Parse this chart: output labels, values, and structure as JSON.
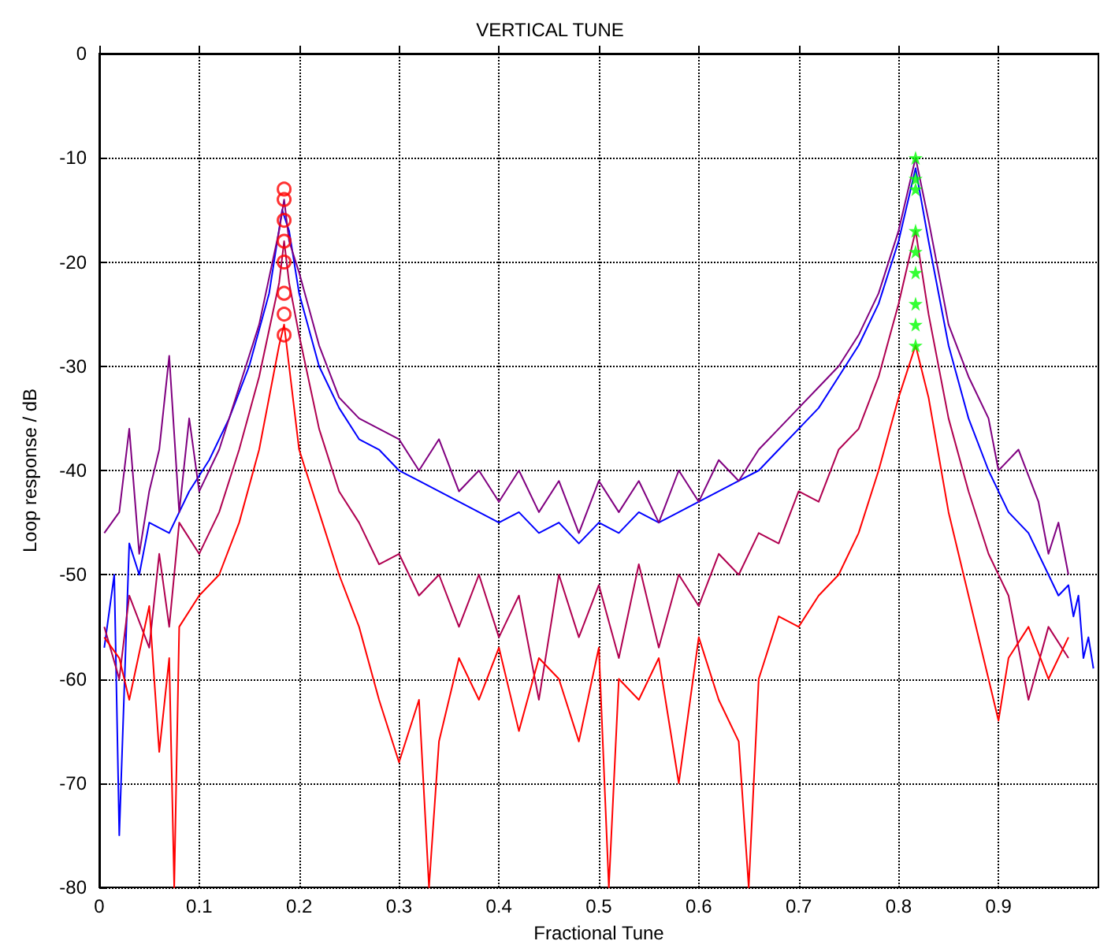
{
  "chart_data": {
    "type": "line",
    "title": "VERTICAL TUNE",
    "xlabel": "Fractional Tune",
    "ylabel": "Loop response / dB",
    "xlim": [
      0,
      1
    ],
    "xticks": [
      0,
      0.1,
      0.2,
      0.3,
      0.4,
      0.5,
      0.6,
      0.7,
      0.8,
      0.9
    ],
    "ylim": [
      -80,
      0
    ],
    "yticks": [
      -80,
      -70,
      -60,
      -50,
      -40,
      -30,
      -20,
      -10,
      0
    ],
    "grid": true,
    "marker": "none",
    "line_style": "solid",
    "series": [
      {
        "color": "#0000ff",
        "x": [
          0.005,
          0.015,
          0.02,
          0.03,
          0.04,
          0.05,
          0.07,
          0.09,
          0.11,
          0.13,
          0.15,
          0.17,
          0.183,
          0.19,
          0.2,
          0.22,
          0.24,
          0.26,
          0.28,
          0.3,
          0.32,
          0.34,
          0.36,
          0.38,
          0.4,
          0.42,
          0.44,
          0.46,
          0.48,
          0.5,
          0.52,
          0.54,
          0.56,
          0.58,
          0.6,
          0.62,
          0.64,
          0.66,
          0.68,
          0.7,
          0.72,
          0.74,
          0.76,
          0.78,
          0.8,
          0.817,
          0.83,
          0.85,
          0.87,
          0.89,
          0.91,
          0.93,
          0.95,
          0.96,
          0.97,
          0.975,
          0.98,
          0.985,
          0.99,
          0.995
        ],
        "values": [
          -57,
          -50,
          -75,
          -47,
          -50,
          -45,
          -46,
          -42,
          -39,
          -35,
          -30,
          -23,
          -15,
          -17,
          -23,
          -30,
          -34,
          -37,
          -38,
          -40,
          -41,
          -42,
          -43,
          -44,
          -45,
          -44,
          -46,
          -45,
          -47,
          -45,
          -46,
          -44,
          -45,
          -44,
          -43,
          -42,
          -41,
          -40,
          -38,
          -36,
          -34,
          -31,
          -28,
          -24,
          -18,
          -11,
          -18,
          -28,
          -35,
          -40,
          -44,
          -46,
          -50,
          -52,
          -51,
          -54,
          -52,
          -58,
          -56,
          -59
        ]
      },
      {
        "color": "#800080",
        "x": [
          0.005,
          0.02,
          0.03,
          0.04,
          0.05,
          0.06,
          0.07,
          0.08,
          0.09,
          0.1,
          0.12,
          0.14,
          0.16,
          0.18,
          0.185,
          0.19,
          0.2,
          0.22,
          0.24,
          0.26,
          0.28,
          0.3,
          0.32,
          0.34,
          0.36,
          0.38,
          0.4,
          0.42,
          0.44,
          0.46,
          0.48,
          0.5,
          0.52,
          0.54,
          0.56,
          0.58,
          0.6,
          0.62,
          0.64,
          0.66,
          0.68,
          0.7,
          0.72,
          0.74,
          0.76,
          0.78,
          0.8,
          0.817,
          0.83,
          0.85,
          0.87,
          0.89,
          0.9,
          0.92,
          0.94,
          0.95,
          0.96,
          0.97
        ],
        "values": [
          -46,
          -44,
          -36,
          -48,
          -42,
          -38,
          -29,
          -44,
          -35,
          -42,
          -38,
          -32,
          -26,
          -17,
          -14,
          -18,
          -21,
          -28,
          -33,
          -35,
          -36,
          -37,
          -40,
          -37,
          -42,
          -40,
          -43,
          -40,
          -44,
          -41,
          -46,
          -41,
          -44,
          -41,
          -45,
          -40,
          -43,
          -39,
          -41,
          -38,
          -36,
          -34,
          -32,
          -30,
          -27,
          -23,
          -17,
          -10,
          -16,
          -26,
          -31,
          -35,
          -40,
          -38,
          -43,
          -48,
          -45,
          -50
        ]
      },
      {
        "color": "#b00050",
        "x": [
          0.005,
          0.02,
          0.03,
          0.05,
          0.06,
          0.07,
          0.08,
          0.1,
          0.12,
          0.14,
          0.16,
          0.18,
          0.185,
          0.19,
          0.2,
          0.22,
          0.24,
          0.26,
          0.28,
          0.3,
          0.32,
          0.34,
          0.36,
          0.38,
          0.4,
          0.42,
          0.44,
          0.46,
          0.48,
          0.5,
          0.52,
          0.54,
          0.56,
          0.58,
          0.6,
          0.62,
          0.64,
          0.66,
          0.68,
          0.7,
          0.72,
          0.74,
          0.76,
          0.78,
          0.8,
          0.817,
          0.83,
          0.85,
          0.87,
          0.89,
          0.91,
          0.93,
          0.95,
          0.97
        ],
        "values": [
          -55,
          -60,
          -52,
          -57,
          -48,
          -55,
          -45,
          -48,
          -44,
          -38,
          -31,
          -22,
          -18,
          -22,
          -27,
          -36,
          -42,
          -45,
          -49,
          -48,
          -52,
          -50,
          -55,
          -50,
          -56,
          -52,
          -62,
          -50,
          -56,
          -51,
          -58,
          -49,
          -57,
          -50,
          -53,
          -48,
          -50,
          -46,
          -47,
          -42,
          -43,
          -38,
          -36,
          -31,
          -24,
          -17,
          -25,
          -35,
          -42,
          -48,
          -52,
          -62,
          -55,
          -58
        ]
      },
      {
        "color": "#ff0000",
        "x": [
          0.005,
          0.02,
          0.03,
          0.05,
          0.06,
          0.07,
          0.075,
          0.08,
          0.1,
          0.12,
          0.14,
          0.16,
          0.18,
          0.185,
          0.19,
          0.2,
          0.22,
          0.24,
          0.26,
          0.28,
          0.3,
          0.32,
          0.33,
          0.34,
          0.36,
          0.38,
          0.4,
          0.42,
          0.44,
          0.46,
          0.48,
          0.5,
          0.51,
          0.52,
          0.54,
          0.56,
          0.58,
          0.6,
          0.62,
          0.64,
          0.65,
          0.66,
          0.68,
          0.7,
          0.72,
          0.74,
          0.76,
          0.78,
          0.8,
          0.817,
          0.83,
          0.85,
          0.87,
          0.89,
          0.9,
          0.91,
          0.93,
          0.95,
          0.97
        ],
        "values": [
          -56,
          -58,
          -62,
          -53,
          -67,
          -58,
          -80,
          -55,
          -52,
          -50,
          -45,
          -38,
          -28,
          -26,
          -30,
          -38,
          -44,
          -50,
          -55,
          -62,
          -68,
          -62,
          -80,
          -66,
          -58,
          -62,
          -57,
          -65,
          -58,
          -60,
          -66,
          -57,
          -80,
          -60,
          -62,
          -58,
          -70,
          -56,
          -62,
          -66,
          -80,
          -60,
          -54,
          -55,
          -52,
          -50,
          -46,
          -40,
          -33,
          -28,
          -33,
          -44,
          -52,
          -60,
          -64,
          -58,
          -55,
          -60,
          -56
        ]
      },
      {
        "type": "scatter",
        "marker": "circle",
        "color": "#ff0000",
        "x": [
          0.185,
          0.185,
          0.185,
          0.185,
          0.185,
          0.185,
          0.185,
          0.185
        ],
        "values": [
          -13,
          -14,
          -16,
          -18,
          -20,
          -23,
          -25,
          -27
        ]
      },
      {
        "type": "scatter",
        "marker": "star",
        "color": "#00ff00",
        "x": [
          0.817,
          0.817,
          0.817,
          0.817,
          0.817,
          0.817,
          0.817,
          0.817,
          0.817
        ],
        "values": [
          -10,
          -12,
          -13,
          -17,
          -19,
          -21,
          -24,
          -26,
          -28
        ]
      }
    ]
  }
}
